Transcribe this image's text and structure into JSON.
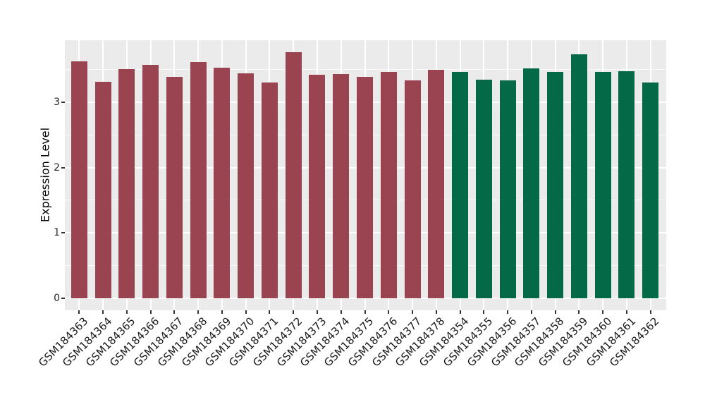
{
  "chart_data": {
    "type": "bar",
    "title": "",
    "xlabel": "",
    "ylabel": "Expression Level",
    "categories": [
      "GSM184363",
      "GSM184364",
      "GSM184365",
      "GSM184366",
      "GSM184367",
      "GSM184368",
      "GSM184369",
      "GSM184370",
      "GSM184371",
      "GSM184372",
      "GSM184373",
      "GSM184374",
      "GSM184375",
      "GSM184376",
      "GSM184377",
      "GSM184378",
      "GSM184354",
      "GSM184355",
      "GSM184356",
      "GSM184357",
      "GSM184358",
      "GSM184359",
      "GSM184360",
      "GSM184361",
      "GSM184362"
    ],
    "values": [
      3.62,
      3.31,
      3.51,
      3.57,
      3.39,
      3.61,
      3.53,
      3.44,
      3.3,
      3.77,
      3.42,
      3.43,
      3.39,
      3.46,
      3.33,
      3.49,
      3.46,
      3.34,
      3.33,
      3.52,
      3.46,
      3.73,
      3.46,
      3.47,
      3.3
    ],
    "bar_groups": [
      "maroon",
      "maroon",
      "maroon",
      "maroon",
      "maroon",
      "maroon",
      "maroon",
      "maroon",
      "maroon",
      "maroon",
      "maroon",
      "maroon",
      "maroon",
      "maroon",
      "maroon",
      "maroon",
      "green",
      "green",
      "green",
      "green",
      "green",
      "green",
      "green",
      "green",
      "green"
    ],
    "group_colors": {
      "maroon": "#9A4451",
      "green": "#046946"
    },
    "yticks": [
      0,
      1,
      2,
      3
    ],
    "yticks_minor": [
      0.5,
      1.5,
      2.5,
      3.5
    ],
    "ylim": [
      0,
      3.95
    ],
    "grid": "on",
    "legend": "none",
    "panel_background": "#EBEBEB",
    "gridline_color": "#FFFFFF",
    "tick_mark_color": "#333333",
    "tick_label_color": "#262626"
  }
}
